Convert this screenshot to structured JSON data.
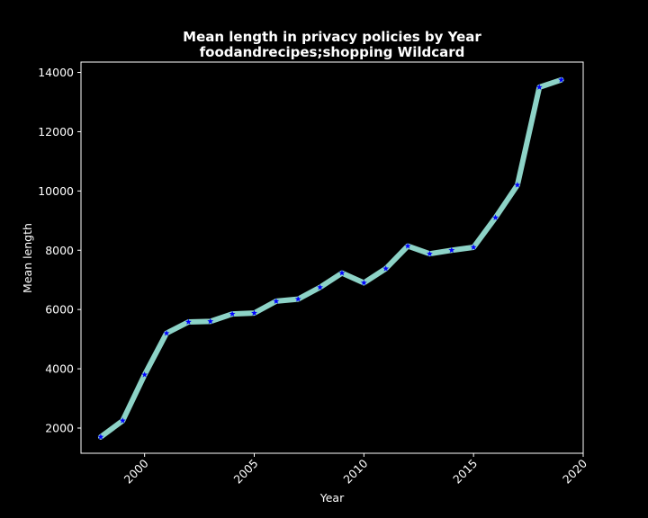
{
  "chart_data": {
    "type": "line",
    "title": "Mean length in privacy policies by Year",
    "subtitle": "foodandrecipes;shopping Wildcard",
    "xlabel": "Year",
    "ylabel": "Mean length",
    "xlim": [
      1997.1,
      2020.0
    ],
    "ylim": [
      1150,
      14350
    ],
    "xticks": [
      2000,
      2005,
      2010,
      2015,
      2020
    ],
    "yticks": [
      2000,
      4000,
      6000,
      8000,
      10000,
      12000,
      14000
    ],
    "grid": false,
    "series": [
      {
        "x": [
          1998,
          1999,
          2000,
          2001,
          2002,
          2003,
          2004,
          2005,
          2006,
          2007,
          2008,
          2009,
          2010,
          2011,
          2012,
          2013,
          2014,
          2015,
          2016,
          2017,
          2018,
          2019
        ],
        "values": [
          1700,
          2250,
          3800,
          5200,
          5580,
          5600,
          5850,
          5880,
          6280,
          6350,
          6750,
          7230,
          6900,
          7380,
          8140,
          7880,
          8000,
          8100,
          9100,
          10200,
          13500,
          13750
        ],
        "line_color": "#8dd3c7",
        "marker_color": "#0000ff",
        "marker": "star"
      }
    ],
    "colors": {
      "background": "#000000",
      "axes": "#ffffff",
      "text": "#ffffff"
    }
  }
}
